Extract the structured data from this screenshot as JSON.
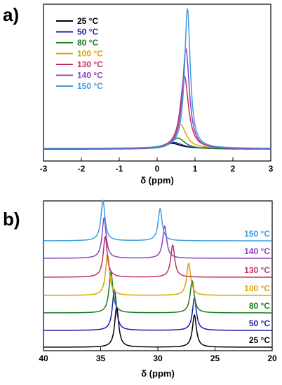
{
  "chart_data": [
    {
      "panel_label": "a)",
      "type": "line",
      "xlabel": "δ (ppm)",
      "ylabel": "",
      "xlim": [
        -3,
        3
      ],
      "x_ticks": [
        -3,
        -2,
        -1,
        0,
        1,
        2,
        3
      ],
      "x_tick_labels": [
        "-3",
        "-2",
        "-1",
        "0",
        "1",
        "2",
        "3"
      ],
      "legend_position": "top-left",
      "series": [
        {
          "name": "25 °C",
          "color": "#000000",
          "peak_center": 0.4,
          "peak_width": 0.55,
          "peak_height": 0.035
        },
        {
          "name": "50 °C",
          "color": "#1a1aa6",
          "peak_center": 0.45,
          "peak_width": 0.55,
          "peak_height": 0.045
        },
        {
          "name": "80 °C",
          "color": "#1a7a1a",
          "peak_center": 0.55,
          "peak_width": 0.45,
          "peak_height": 0.08
        },
        {
          "name": "100 °C",
          "color": "#e0a000",
          "peak_center": 0.62,
          "peak_width": 0.35,
          "peak_height": 0.17
        },
        {
          "name": "130 °C",
          "color": "#c03060",
          "peak_center": 0.72,
          "peak_width": 0.26,
          "peak_height": 0.52
        },
        {
          "name": "140 °C",
          "color": "#9040c0",
          "peak_center": 0.76,
          "peak_width": 0.22,
          "peak_height": 0.72
        },
        {
          "name": "150 °C",
          "color": "#3a9ee0",
          "peak_center": 0.8,
          "peak_width": 0.18,
          "peak_height": 1.0
        }
      ]
    },
    {
      "panel_label": "b)",
      "type": "line",
      "xlabel": "δ (ppm)",
      "ylabel": "",
      "xlim": [
        40,
        20
      ],
      "x_ticks": [
        40,
        35,
        30,
        25,
        20
      ],
      "x_tick_labels": [
        "40",
        "35",
        "30",
        "25",
        "20"
      ],
      "series": [
        {
          "name": "25 °C",
          "color": "#000000",
          "peak1_center": 33.6,
          "peak2_center": 26.8
        },
        {
          "name": "50 °C",
          "color": "#1a1aa6",
          "peak1_center": 33.8,
          "peak2_center": 26.8
        },
        {
          "name": "80 °C",
          "color": "#1a7a1a",
          "peak1_center": 34.1,
          "peak2_center": 27.0
        },
        {
          "name": "100 °C",
          "color": "#e0a000",
          "peak1_center": 34.4,
          "peak2_center": 27.3
        },
        {
          "name": "130 °C",
          "color": "#c03060",
          "peak1_center": 34.6,
          "peak2_center": 28.7
        },
        {
          "name": "140 °C",
          "color": "#9040c0",
          "peak1_center": 34.7,
          "peak2_center": 29.4
        },
        {
          "name": "150 °C",
          "color": "#3a9ee0",
          "peak1_center": 34.8,
          "peak2_center": 29.8
        }
      ]
    }
  ]
}
